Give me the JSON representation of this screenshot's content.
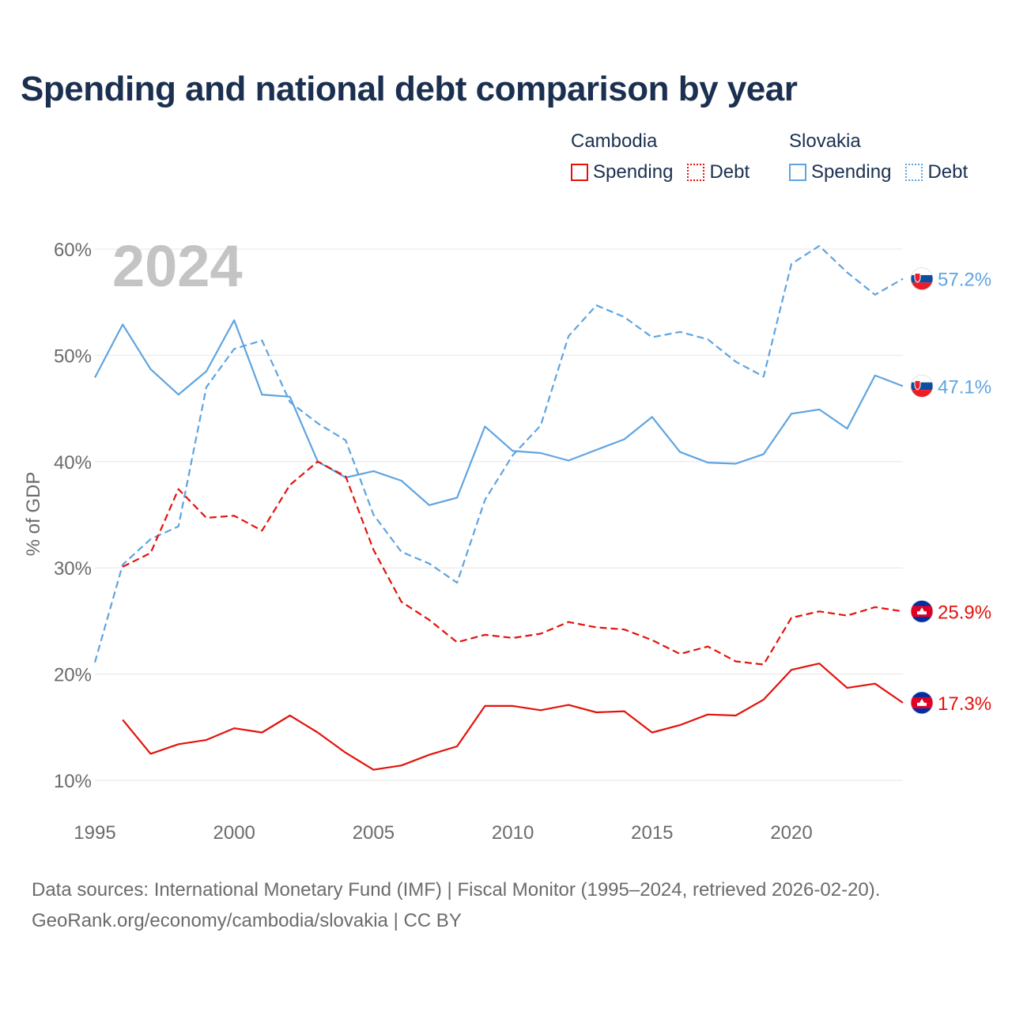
{
  "title": "Spending and national debt comparison by year",
  "legend": {
    "groups": [
      {
        "country": "Cambodia",
        "color": "#e3120b",
        "items": [
          {
            "label": "Spending",
            "style": "solid"
          },
          {
            "label": "Debt",
            "style": "dotted"
          }
        ]
      },
      {
        "country": "Slovakia",
        "color": "#5fa4e0",
        "items": [
          {
            "label": "Spending",
            "style": "solid"
          },
          {
            "label": "Debt",
            "style": "dotted"
          }
        ]
      }
    ]
  },
  "chart_data": {
    "type": "line",
    "year_label": "2024",
    "ylabel": "% of GDP",
    "xlim": [
      1995,
      2024
    ],
    "ylim": [
      10,
      60
    ],
    "yticks": [
      10,
      20,
      30,
      40,
      50,
      60
    ],
    "ytick_labels": [
      "10%",
      "20%",
      "30%",
      "40%",
      "50%",
      "60%"
    ],
    "xticks": [
      1995,
      2000,
      2005,
      2010,
      2015,
      2020
    ],
    "xtick_labels": [
      "1995",
      "2000",
      "2005",
      "2010",
      "2015",
      "2020"
    ],
    "series": [
      {
        "name": "Slovakia Debt",
        "country": "Slovakia",
        "measure": "Debt",
        "color": "#5fa4e0",
        "dash": "dashed",
        "end_label": "57.2%",
        "x": [
          1995,
          1996,
          1997,
          1998,
          1999,
          2000,
          2001,
          2002,
          2003,
          2004,
          2005,
          2006,
          2007,
          2008,
          2009,
          2010,
          2011,
          2012,
          2013,
          2014,
          2015,
          2016,
          2017,
          2018,
          2019,
          2020,
          2021,
          2022,
          2023,
          2024
        ],
        "values": [
          21.1,
          30.3,
          32.7,
          33.9,
          47.0,
          50.6,
          51.4,
          45.6,
          43.6,
          42.0,
          35.0,
          31.5,
          30.4,
          28.6,
          36.4,
          40.6,
          43.4,
          51.8,
          54.7,
          53.6,
          51.7,
          52.2,
          51.5,
          49.4,
          48.0,
          58.6,
          60.3,
          57.8,
          55.7,
          57.2
        ]
      },
      {
        "name": "Slovakia Spending",
        "country": "Slovakia",
        "measure": "Spending",
        "color": "#5fa4e0",
        "dash": "solid",
        "end_label": "47.1%",
        "x": [
          1995,
          1996,
          1997,
          1998,
          1999,
          2000,
          2001,
          2002,
          2003,
          2004,
          2005,
          2006,
          2007,
          2008,
          2009,
          2010,
          2011,
          2012,
          2013,
          2014,
          2015,
          2016,
          2017,
          2018,
          2019,
          2020,
          2021,
          2022,
          2023,
          2024
        ],
        "values": [
          47.9,
          52.9,
          48.7,
          46.3,
          48.5,
          53.3,
          46.3,
          46.1,
          40.0,
          38.5,
          39.1,
          38.2,
          35.9,
          36.6,
          43.3,
          41.0,
          40.8,
          40.1,
          41.1,
          42.1,
          44.2,
          40.9,
          39.9,
          39.8,
          40.7,
          44.5,
          44.9,
          43.1,
          48.1,
          47.1
        ]
      },
      {
        "name": "Cambodia Debt",
        "country": "Cambodia",
        "measure": "Debt",
        "color": "#e3120b",
        "dash": "dashed",
        "end_label": "25.9%",
        "x": [
          1996,
          1997,
          1998,
          1999,
          2000,
          2001,
          2002,
          2003,
          2004,
          2005,
          2006,
          2007,
          2008,
          2009,
          2010,
          2011,
          2012,
          2013,
          2014,
          2015,
          2016,
          2017,
          2018,
          2019,
          2020,
          2021,
          2022,
          2023,
          2024
        ],
        "values": [
          30.1,
          31.4,
          37.4,
          34.7,
          34.9,
          33.5,
          37.8,
          40.0,
          38.6,
          31.7,
          26.8,
          25.1,
          23.0,
          23.7,
          23.4,
          23.8,
          24.9,
          24.4,
          24.2,
          23.2,
          21.9,
          22.6,
          21.2,
          20.9,
          25.3,
          25.9,
          25.5,
          26.3,
          25.9
        ]
      },
      {
        "name": "Cambodia Spending",
        "country": "Cambodia",
        "measure": "Spending",
        "color": "#e3120b",
        "dash": "solid",
        "end_label": "17.3%",
        "x": [
          1996,
          1997,
          1998,
          1999,
          2000,
          2001,
          2002,
          2003,
          2004,
          2005,
          2006,
          2007,
          2008,
          2009,
          2010,
          2011,
          2012,
          2013,
          2014,
          2015,
          2016,
          2017,
          2018,
          2019,
          2020,
          2021,
          2022,
          2023,
          2024
        ],
        "values": [
          15.7,
          12.5,
          13.4,
          13.8,
          14.9,
          14.5,
          16.1,
          14.5,
          12.6,
          11.0,
          11.4,
          12.4,
          13.2,
          17.0,
          17.0,
          16.6,
          17.1,
          16.4,
          16.5,
          14.5,
          15.2,
          16.2,
          16.1,
          17.6,
          20.4,
          21.0,
          18.7,
          19.1,
          17.3
        ]
      }
    ]
  },
  "source": {
    "line1": "Data sources: International Monetary Fund (IMF) | Fiscal Monitor (1995–2024, retrieved 2026-02-20).",
    "line2": "GeoRank.org/economy/cambodia/slovakia | CC BY"
  }
}
